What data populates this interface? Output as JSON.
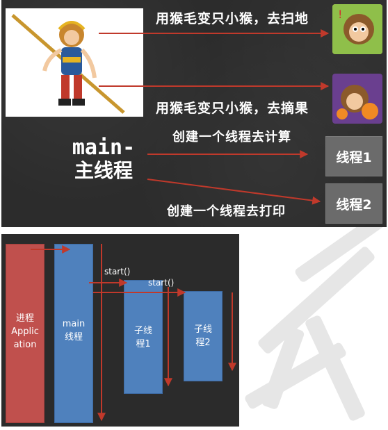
{
  "top_panel": {
    "caption_sweep": "用猴毛变只小猴，去扫地",
    "caption_fruit": "用猴毛变只小猴，去摘果",
    "caption_compute": "创建一个线程去计算",
    "caption_print": "创建一个线程去打印",
    "main_label_line1": "main-",
    "main_label_line2": "主线程",
    "thread1_label": "线程1",
    "thread2_label": "线程2"
  },
  "bottom_panel": {
    "process_line1": "进程",
    "process_line2": "Applic",
    "process_line3": "ation",
    "main_line1": "main",
    "main_line2": "线程",
    "child1_line1": "子线",
    "child1_line2": "程1",
    "child2_line1": "子线",
    "child2_line2": "程2",
    "start_label_1": "start()",
    "start_label_2": "start()"
  },
  "colors": {
    "chalkboard": "#2c2c2c",
    "arrow_red": "#c0392b",
    "process_red": "#c0504d",
    "thread_blue": "#4f81bd",
    "thread_box_gray": "#6b6b6b"
  }
}
